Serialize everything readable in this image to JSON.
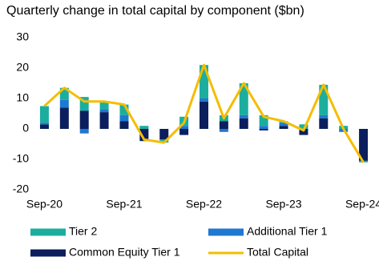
{
  "chart_data": {
    "type": "stacked-bar-line",
    "title": "Quarterly change in total capital by component ($bn)",
    "categories": [
      "Sep-20",
      null,
      null,
      null,
      "Sep-21",
      null,
      null,
      null,
      "Sep-22",
      null,
      null,
      null,
      "Sep-23",
      null,
      null,
      null,
      "Sep-24"
    ],
    "series": [
      {
        "name": "Common Equity Tier 1",
        "color": "#0b1f5e",
        "values": [
          1.5,
          7,
          6,
          5.5,
          2.5,
          -4,
          -3.5,
          -2,
          9,
          2.5,
          3.5,
          -0.5,
          1,
          -2,
          3.5,
          0,
          -10.5
        ]
      },
      {
        "name": "Additional Tier 1",
        "color": "#1f78d1",
        "values": [
          0.5,
          2.5,
          -1.5,
          1,
          2,
          0,
          0,
          1,
          1,
          -1,
          1,
          1,
          1,
          0,
          1,
          -1,
          0
        ]
      },
      {
        "name": "Tier 2",
        "color": "#1bae9e",
        "values": [
          5.5,
          4,
          4.5,
          2.5,
          3.5,
          1,
          -1,
          3,
          11,
          2,
          10.5,
          3.5,
          0.5,
          1.5,
          10,
          1,
          -0.5
        ]
      },
      {
        "name": "Total Capital",
        "type": "line",
        "color": "#f5bd00",
        "values": [
          7.5,
          13.5,
          9,
          9,
          8,
          -3.5,
          -4.5,
          2,
          21,
          3.5,
          15,
          4,
          2.5,
          -0.5,
          14.5,
          0,
          -11
        ]
      }
    ],
    "ylim": [
      -20,
      30
    ],
    "yticks": [
      -20,
      -10,
      0,
      10,
      20,
      30
    ],
    "grid": false
  }
}
